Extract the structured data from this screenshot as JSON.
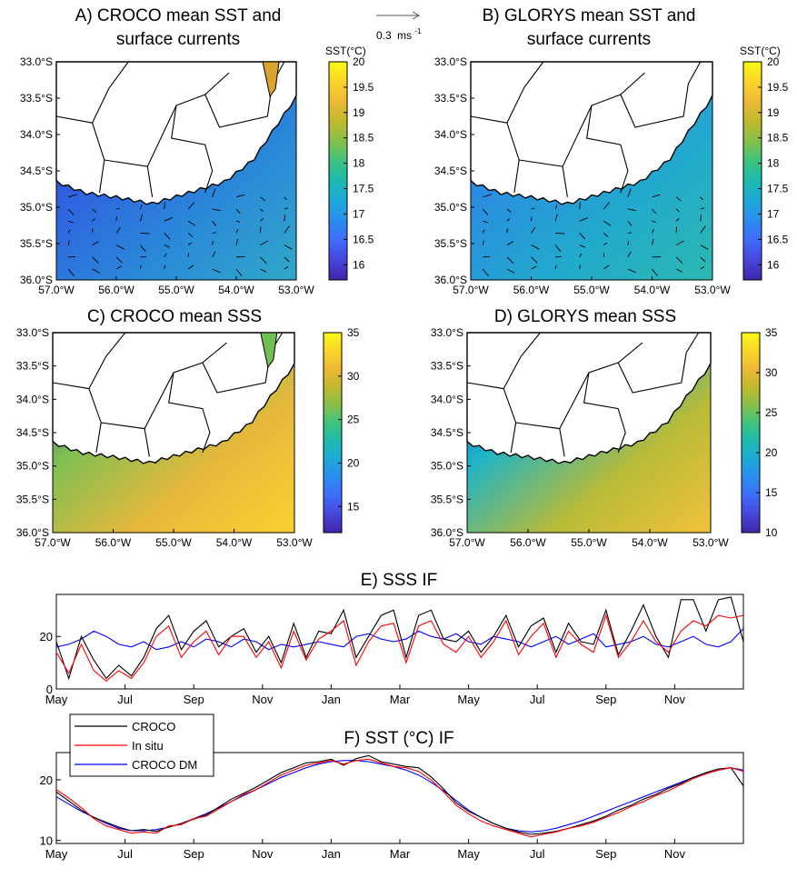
{
  "figure": {
    "scale_arrow_label": "0.3",
    "scale_arrow_unit": "ms",
    "scale_arrow_exp": "-1"
  },
  "colors": {
    "croco": "#000000",
    "in_situ": "#ff0000",
    "croco_dm": "#0000ff",
    "land": "#ffffff",
    "colormap": [
      "#3e26a8",
      "#4745d9",
      "#3f6bfa",
      "#2a8cf0",
      "#1ca8d8",
      "#1cbab0",
      "#3ec27f",
      "#85c14b",
      "#c0b92e",
      "#eeb935",
      "#fbd42a",
      "#f9fb15"
    ]
  },
  "map_panels": [
    {
      "id": "A",
      "title_line1": "A) CROCO mean SST and",
      "title_line2": "surface currents",
      "x_ticks": [
        "57.0°W",
        "56.0°W",
        "55.0°W",
        "54.0°W",
        "53.0°W"
      ],
      "y_ticks": [
        "33.0°S",
        "33.5°S",
        "34.0°S",
        "34.5°S",
        "35.0°S",
        "35.5°S",
        "36.0°S"
      ],
      "colorbar_label": "SST(°C)",
      "colorbar_ticks": [
        "20",
        "19.5",
        "19",
        "18.5",
        "18",
        "17.5",
        "17",
        "16.5",
        "16"
      ],
      "colorbar_range": [
        15.7,
        20
      ],
      "colors": [
        "#2a3fc0",
        "#2f62e0",
        "#2a8ad8",
        "#30a8c8"
      ]
    },
    {
      "id": "B",
      "title_line1": "B) GLORYS mean SST and",
      "title_line2": "surface currents",
      "x_ticks": [
        "57.0°W",
        "56.0°W",
        "55.0°W",
        "54.0°W",
        "53.0°W"
      ],
      "y_ticks": [
        "33.0°S",
        "33.5°S",
        "34.0°S",
        "34.5°S",
        "35.0°S",
        "35.5°S",
        "36.0°S"
      ],
      "colorbar_label": "SST(°C)",
      "colorbar_ticks": [
        "20",
        "19.5",
        "19",
        "18.5",
        "18",
        "17.5",
        "17",
        "16.5",
        "16"
      ],
      "colorbar_range": [
        15.7,
        20
      ],
      "colors": [
        "#2b5ee0",
        "#2a8ee0",
        "#22aacc",
        "#2cb8b0"
      ]
    },
    {
      "id": "C",
      "title_line1": "C) CROCO mean SSS",
      "title_line2": "",
      "x_ticks": [
        "57.0°W",
        "56.0°W",
        "55.0°W",
        "54.0°W",
        "53.0°W"
      ],
      "y_ticks": [
        "33.0°S",
        "33.5°S",
        "34.0°S",
        "34.5°S",
        "35.0°S",
        "35.5°S",
        "36.0°S"
      ],
      "colorbar_label": "",
      "colorbar_ticks": [
        "35",
        "30",
        "25",
        "20",
        "15"
      ],
      "colorbar_range": [
        12,
        35
      ],
      "colors": [
        "#3a2fb8",
        "#7fbf52",
        "#e8b83c",
        "#fbd030"
      ]
    },
    {
      "id": "D",
      "title_line1": "D) GLORYS mean SSS",
      "title_line2": "",
      "x_ticks": [
        "57.0°W",
        "56.0°W",
        "55.0°W",
        "54.0°W",
        "53.0°W"
      ],
      "y_ticks": [
        "33.0°S",
        "33.5°S",
        "34.0°S",
        "34.5°S",
        "35.0°S",
        "35.5°S",
        "36.0°S"
      ],
      "colorbar_label": "",
      "colorbar_ticks": [
        "35",
        "30",
        "25",
        "20",
        "15",
        "10"
      ],
      "colorbar_range": [
        10,
        35
      ],
      "colors": [
        "#3a2fb8",
        "#1cb4c8",
        "#b8bb38",
        "#f2c23a"
      ]
    }
  ],
  "chart_data": [
    {
      "type": "line",
      "title": "E) SSS IF",
      "xlabel": "",
      "ylabel": "",
      "x_ticks": [
        "May",
        "Jul",
        "Sep",
        "Nov",
        "Jan",
        "Mar",
        "May",
        "Jul",
        "Sep",
        "Nov"
      ],
      "x_tick_months": [
        0,
        2,
        4,
        6,
        8,
        10,
        12,
        14,
        16,
        18
      ],
      "xlim_months": [
        0,
        20
      ],
      "ylim": [
        0,
        36
      ],
      "y_ticks": [
        0,
        20
      ],
      "series": [
        {
          "name": "CROCO",
          "values": [
            18,
            4,
            20,
            11,
            4,
            9,
            5,
            12,
            23,
            28,
            15,
            22,
            26,
            16,
            20,
            23,
            14,
            20,
            10,
            25,
            12,
            22,
            21,
            30,
            12,
            20,
            28,
            30,
            12,
            28,
            30,
            19,
            18,
            22,
            14,
            20,
            28,
            16,
            24,
            27,
            14,
            25,
            18,
            17,
            30,
            13,
            22,
            32,
            20,
            12,
            34,
            34,
            22,
            34,
            35,
            18
          ]
        },
        {
          "name": "In situ",
          "values": [
            14,
            6,
            17,
            7,
            3,
            7,
            4,
            10,
            20,
            24,
            12,
            18,
            22,
            13,
            20,
            20,
            12,
            18,
            8,
            22,
            11,
            19,
            22,
            26,
            9,
            18,
            24,
            25,
            10,
            24,
            26,
            17,
            14,
            20,
            12,
            18,
            26,
            13,
            20,
            25,
            12,
            22,
            17,
            14,
            28,
            12,
            18,
            26,
            18,
            14,
            22,
            26,
            24,
            28,
            27,
            28
          ]
        },
        {
          "name": "CROCO DM",
          "values": [
            16,
            17,
            19,
            22,
            20,
            17,
            16,
            18,
            15,
            16,
            18,
            16,
            19,
            18,
            16,
            19,
            18,
            15,
            17,
            16,
            17,
            18,
            17,
            16,
            20,
            21,
            19,
            18,
            19,
            22,
            20,
            19,
            21,
            18,
            17,
            20,
            19,
            18,
            16,
            18,
            20,
            17,
            19,
            21,
            16,
            17,
            18,
            20,
            17,
            16,
            18,
            20,
            17,
            16,
            18,
            23
          ]
        }
      ]
    },
    {
      "type": "line",
      "title": "F) SST (°C) IF",
      "xlabel": "",
      "ylabel": "",
      "x_ticks": [
        "May",
        "Jul",
        "Sep",
        "Nov",
        "Jan",
        "Mar",
        "May",
        "Jul",
        "Sep",
        "Nov"
      ],
      "x_tick_months": [
        0,
        2,
        4,
        6,
        8,
        10,
        12,
        14,
        16,
        18
      ],
      "xlim_months": [
        0,
        20
      ],
      "ylim": [
        9.5,
        24.5
      ],
      "y_ticks": [
        10,
        20
      ],
      "legend": [
        "CROCO",
        "In situ",
        "CROCO DM"
      ],
      "legend_position": "top-left, spanning panels E and F",
      "series": [
        {
          "name": "CROCO",
          "values": [
            18,
            16.5,
            15,
            13.8,
            13,
            12.2,
            11.6,
            11.8,
            11.5,
            12.2,
            12.8,
            13.5,
            14.2,
            15.5,
            16.8,
            17.8,
            18.8,
            20,
            21.2,
            22,
            22.8,
            23,
            23.4,
            22.4,
            23.5,
            24,
            23,
            22.6,
            22.2,
            22,
            20.5,
            18.5,
            16.2,
            14.8,
            13.8,
            12.8,
            12,
            11.4,
            11,
            11.2,
            11.5,
            12,
            12.6,
            13.2,
            14,
            15,
            15.8,
            16.8,
            17.6,
            18.6,
            19.4,
            20.4,
            21.2,
            21.8,
            22,
            19
          ]
        },
        {
          "name": "In situ",
          "values": [
            18.4,
            17,
            15.4,
            13.6,
            12.4,
            11.8,
            11.2,
            11.4,
            11.2,
            12.4,
            12.6,
            13.6,
            14,
            15.2,
            16.4,
            17.6,
            18.4,
            19.6,
            20.8,
            21.6,
            22.4,
            22.8,
            23.2,
            22.6,
            23.2,
            23.4,
            22.8,
            22.2,
            22,
            21.4,
            20,
            18,
            15.8,
            14.4,
            13.2,
            12.4,
            11.8,
            11.2,
            10.6,
            11,
            11.4,
            12,
            12.4,
            13,
            13.8,
            14.6,
            15.6,
            16.4,
            17.4,
            18.2,
            19.2,
            20.2,
            21,
            21.6,
            22,
            21.4
          ]
        },
        {
          "name": "CROCO DM",
          "values": [
            17.2,
            16,
            14.8,
            13.8,
            12.8,
            12,
            11.6,
            11.6,
            11.8,
            12.2,
            12.8,
            13.6,
            14.4,
            15.4,
            16.4,
            17.4,
            18.4,
            19.4,
            20.4,
            21.2,
            22,
            22.6,
            23,
            23.2,
            23.2,
            23,
            22.6,
            22.2,
            21.6,
            20.8,
            19.6,
            18.2,
            16.6,
            15,
            13.8,
            12.8,
            12,
            11.6,
            11.4,
            11.6,
            12,
            12.6,
            13.2,
            14,
            14.8,
            15.6,
            16.4,
            17.2,
            18,
            18.8,
            19.6,
            20.4,
            21,
            21.6,
            22,
            21.6
          ]
        }
      ]
    }
  ]
}
